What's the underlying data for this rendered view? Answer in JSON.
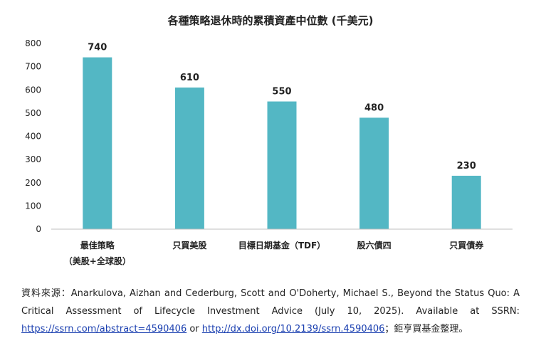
{
  "chart_data": {
    "type": "bar",
    "title": "各種策略退休時的累積資產中位數 (千美元)",
    "categories": [
      [
        "最佳策略",
        "（美股+全球股）"
      ],
      [
        "只買美股"
      ],
      [
        "目標日期基金（TDF）"
      ],
      [
        "股六債四"
      ],
      [
        "只買債券"
      ]
    ],
    "values": [
      740,
      610,
      550,
      480,
      230
    ],
    "ylim": [
      0,
      800
    ],
    "yticks": [
      0,
      100,
      200,
      300,
      400,
      500,
      600,
      700,
      800
    ],
    "grid": false,
    "bar_color": "#53b7c4",
    "xlabel": "",
    "ylabel": ""
  },
  "source": {
    "text_a": "資料來源：Anarkulova, Aizhan and Cederburg, Scott and O'Doherty, Michael S., Beyond the Status Quo: A Critical Assessment of Lifecycle Investment Advice (July 10, 2025). Available at SSRN: ",
    "link1": "https://ssrn.com/abstract=4590406",
    "text_b": " or ",
    "link2": "http://dx.doi.org/10.2139/ssrn.4590406",
    "text_c": "；鉅亨買基金整理。"
  }
}
